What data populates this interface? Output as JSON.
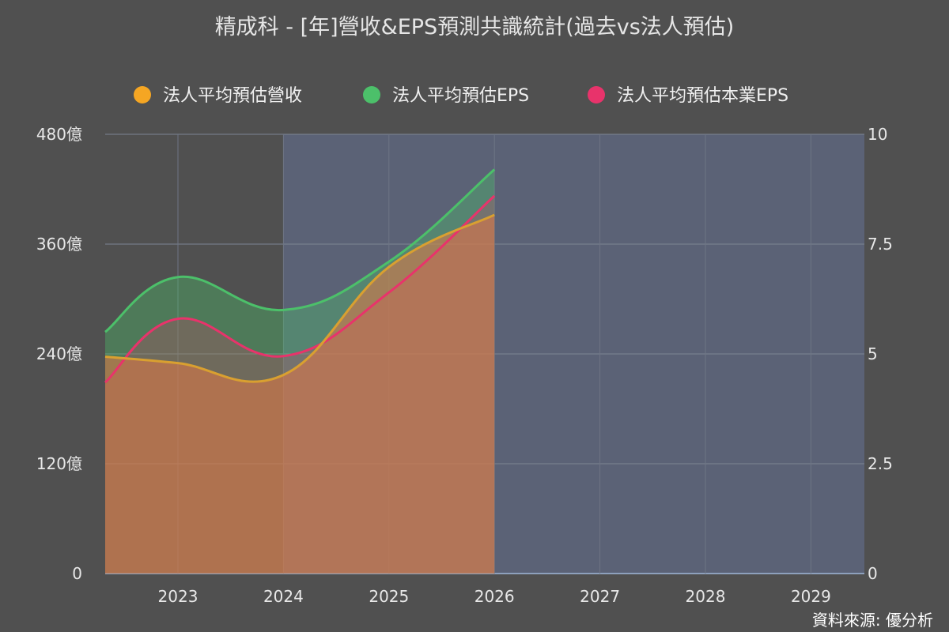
{
  "chart_data": {
    "type": "area",
    "title": "精成科 - [年]營收&EPS預測共識統計(過去vs法人預估)",
    "categories": [
      "2023",
      "2024",
      "2025",
      "2026",
      "2027",
      "2028",
      "2029"
    ],
    "forecast_region_from": "2024",
    "left_axis": {
      "ylim": [
        0,
        480
      ],
      "ticks": [
        "0",
        "120億",
        "240億",
        "360億",
        "480億"
      ]
    },
    "right_axis": {
      "ylim": [
        0,
        10
      ],
      "ticks": [
        "0",
        "2.5",
        "5",
        "7.5",
        "10"
      ]
    },
    "grid": true,
    "legend_position": "top",
    "series": [
      {
        "name": "法人平均預估營收",
        "axis": "left",
        "color": "#f5a623",
        "x": [
          "2023",
          "2024",
          "2025",
          "2026"
        ],
        "values": [
          230,
          217,
          335,
          392
        ]
      },
      {
        "name": "法人平均預估EPS",
        "axis": "right",
        "color": "#4cc06a",
        "x": [
          "2023",
          "2024",
          "2025",
          "2026"
        ],
        "values": [
          6.75,
          6.0,
          7.1,
          9.2
        ]
      },
      {
        "name": "法人平均預估本業EPS",
        "axis": "right",
        "color": "#e8336b",
        "x": [
          "2023",
          "2024",
          "2025",
          "2026"
        ],
        "values": [
          5.8,
          4.95,
          6.4,
          8.6
        ]
      }
    ],
    "edge_values": {
      "left_edge": {
        "法人平均預估營收": 237,
        "法人平均預估EPS": 5.5,
        "法人平均預估本業EPS": 4.35
      }
    }
  },
  "source_label": "資料來源: 優分析"
}
